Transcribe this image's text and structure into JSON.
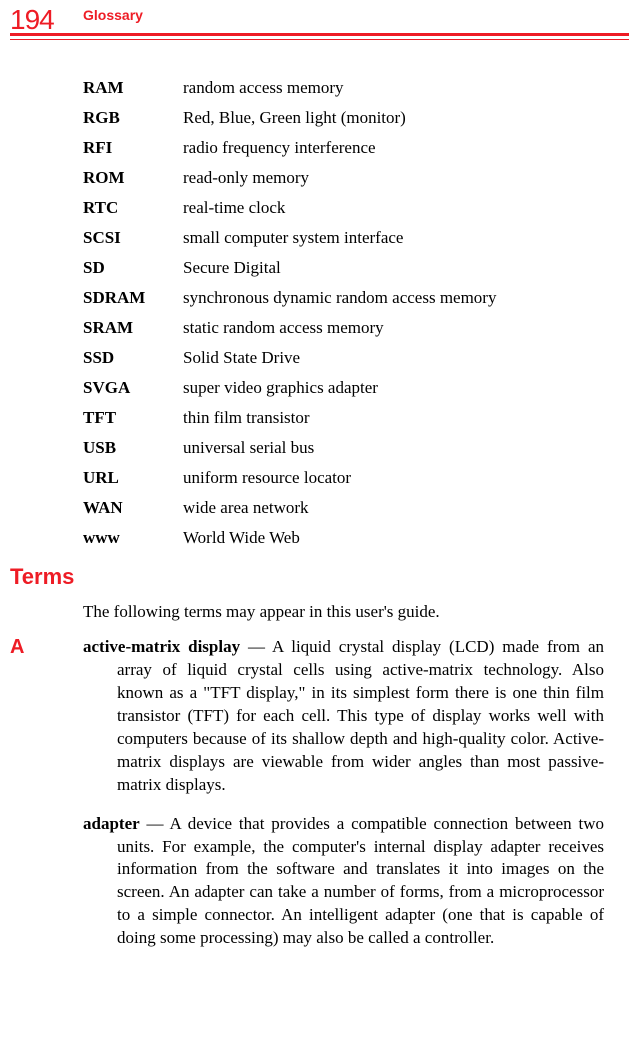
{
  "header": {
    "page_number": "194",
    "chapter": "Glossary",
    "colors": {
      "accent": "#ee1c25",
      "text": "#000000",
      "bg": "#ffffff"
    }
  },
  "acronyms": [
    {
      "term": "RAM",
      "def": "random access memory"
    },
    {
      "term": "RGB",
      "def": "Red, Blue, Green light (monitor)"
    },
    {
      "term": "RFI",
      "def": "radio frequency interference"
    },
    {
      "term": "ROM",
      "def": "read-only memory"
    },
    {
      "term": "RTC",
      "def": "real-time clock"
    },
    {
      "term": "SCSI",
      "def": "small computer system interface"
    },
    {
      "term": "SD",
      "def": "Secure Digital"
    },
    {
      "term": "SDRAM",
      "def": "synchronous dynamic random access memory"
    },
    {
      "term": "SRAM",
      "def": "static random access memory"
    },
    {
      "term": "SSD",
      "def": "Solid State Drive"
    },
    {
      "term": "SVGA",
      "def": "super video graphics adapter"
    },
    {
      "term": "TFT",
      "def": "thin film transistor"
    },
    {
      "term": "USB",
      "def": "universal serial bus"
    },
    {
      "term": "URL",
      "def": "uniform resource locator"
    },
    {
      "term": "WAN",
      "def": "wide area network"
    },
    {
      "term": "www",
      "def": "World Wide Web"
    }
  ],
  "terms_section": {
    "heading": "Terms",
    "intro": "The following terms may appear in this user's guide.",
    "letter": "A",
    "entries": [
      {
        "term": "active-matrix display",
        "sep": " — ",
        "def": "A liquid crystal display (LCD) made from an array of liquid crystal cells using active-matrix technology. Also known as a \"TFT display,\" in its simplest form there is one thin film transistor (TFT) for each cell. This type of display works well with computers because of its shallow depth and high-quality color. Active-matrix displays are viewable from wider angles than most passive-matrix displays."
      },
      {
        "term": "adapter",
        "sep": " — ",
        "def": "A device that provides a compatible connection between two units. For example, the computer's internal display adapter receives information from the software and translates it into images on the screen. An adapter can take a number of forms, from a microprocessor to a simple connector. An intelligent adapter (one that is capable of doing some processing) may also be called a controller."
      }
    ]
  }
}
